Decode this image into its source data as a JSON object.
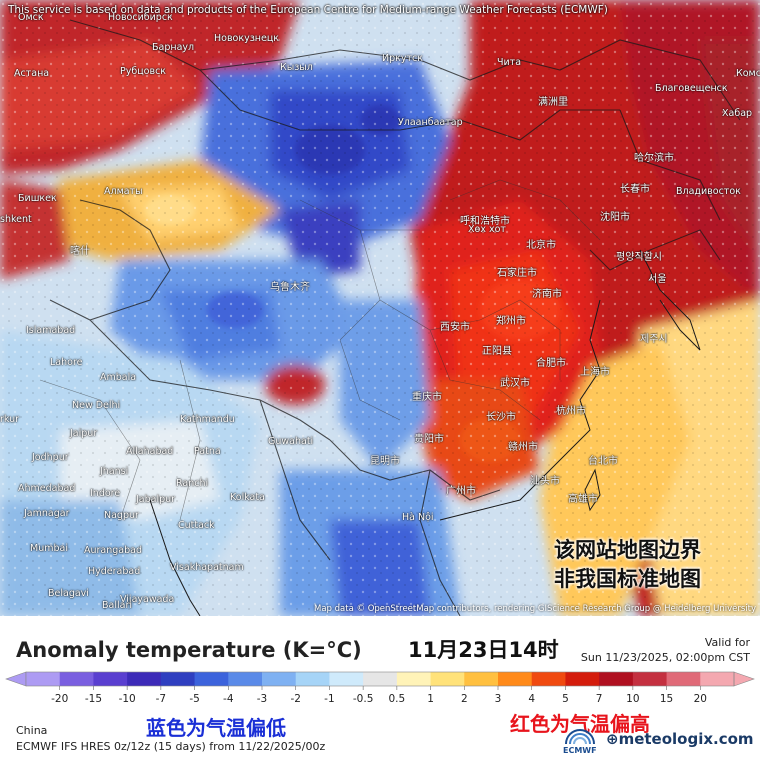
{
  "map": {
    "service_note": "This service is based on data and products of the European Centre for Medium-range Weather Forecasts (ECMWF)",
    "attribution": "Map data © OpenStreetMap contributors, rendering GIScience Research Group @ Heidelberg University",
    "disclaimer_lines": [
      "该网站地图边界",
      "非我国标准地图"
    ],
    "cities": [
      {
        "name": "Омск"
      },
      {
        "name": "Новосибирск"
      },
      {
        "name": "Барнаул"
      },
      {
        "name": "Новокузнецк"
      },
      {
        "name": "Астана"
      },
      {
        "name": "Рубцовск"
      },
      {
        "name": "Кызыл"
      },
      {
        "name": "Иркутск"
      },
      {
        "name": "Чита"
      },
      {
        "name": "Благовещенск"
      },
      {
        "name": "Комс"
      },
      {
        "name": "Хабар"
      },
      {
        "name": "Улаанбаатар"
      },
      {
        "name": "满洲里"
      },
      {
        "name": "哈尔滨市"
      },
      {
        "name": "长春市"
      },
      {
        "name": "Владивосток"
      },
      {
        "name": "Бишкек"
      },
      {
        "name": "Алматы"
      },
      {
        "name": "shkent"
      },
      {
        "name": "呼和浩特市"
      },
      {
        "name": "Хөх хот"
      },
      {
        "name": "北京市"
      },
      {
        "name": "沈阳市"
      },
      {
        "name": "평양직할시"
      },
      {
        "name": "서울"
      },
      {
        "name": "喀什"
      },
      {
        "name": "石家庄市"
      },
      {
        "name": "济南市"
      },
      {
        "name": "乌鲁木齐"
      },
      {
        "name": "Islamabad"
      },
      {
        "name": "西安市"
      },
      {
        "name": "郑州市"
      },
      {
        "name": "제주시"
      },
      {
        "name": "Lahore"
      },
      {
        "name": "正阳县"
      },
      {
        "name": "合肥市"
      },
      {
        "name": "上海市"
      },
      {
        "name": "Ambala"
      },
      {
        "name": "武汉市"
      },
      {
        "name": "重庆市"
      },
      {
        "name": "杭州市"
      },
      {
        "name": "New Delhi"
      },
      {
        "name": "长沙市"
      },
      {
        "name": "Kathmandu"
      },
      {
        "name": "rkur"
      },
      {
        "name": "Jaipur"
      },
      {
        "name": "Guwahati"
      },
      {
        "name": "贵阳市"
      },
      {
        "name": "赣州市"
      },
      {
        "name": "台北市"
      },
      {
        "name": "Allahabad"
      },
      {
        "name": "Patna"
      },
      {
        "name": "Jodhpur"
      },
      {
        "name": "昆明市"
      },
      {
        "name": "Jhansi"
      },
      {
        "name": "Ranchi"
      },
      {
        "name": "Ahmedabad"
      },
      {
        "name": "Indore"
      },
      {
        "name": "广州市"
      },
      {
        "name": "汕头市"
      },
      {
        "name": "高雄市"
      },
      {
        "name": "Kolkata"
      },
      {
        "name": "Jabalpur"
      },
      {
        "name": "Jamnagar"
      },
      {
        "name": "Nagpur"
      },
      {
        "name": "Hà Nội"
      },
      {
        "name": "Cuttack"
      },
      {
        "name": "Mumbai"
      },
      {
        "name": "Aurangabad"
      },
      {
        "name": "Hyderabad"
      },
      {
        "name": "Visakhapatnam"
      },
      {
        "name": "Belagavi"
      },
      {
        "name": "Vijayawada"
      },
      {
        "name": "Ballari"
      }
    ]
  },
  "legend": {
    "title": "Anomaly temperature (K=°C)",
    "date": "11月23日14时",
    "valid_label": "Valid for",
    "valid_time": "Sun 11/23/2025, 02:00pm CST",
    "region": "China",
    "model_info": "ECMWF IFS HRES 0z/12z (15 days) from 11/22/2025/00z",
    "note_blue": "蓝色为气温偏低",
    "note_red": "红色为气温偏高",
    "ecmwf_logo_text": "ECMWF",
    "brand": "meteologix.com",
    "scale_labels": [
      "-20",
      "-15",
      "-10",
      "-7",
      "-5",
      "-4",
      "-3",
      "-2",
      "-1",
      "-0.5",
      "0.5",
      "1",
      "2",
      "3",
      "4",
      "5",
      "7",
      "10",
      "15",
      "20"
    ],
    "scale_colors": [
      "#ad9bf3",
      "#7a5fe0",
      "#5a3fd0",
      "#3d2bb8",
      "#2f3fc0",
      "#3c63dc",
      "#5a8ae8",
      "#7fb1f2",
      "#a6d4f7",
      "#cfeafb",
      "#e6e6e6",
      "#fff3b8",
      "#ffe27a",
      "#ffc040",
      "#ff8a1a",
      "#f04a10",
      "#d41c0c",
      "#b01020",
      "#c43040",
      "#e06a78",
      "#f4a8b0"
    ]
  }
}
